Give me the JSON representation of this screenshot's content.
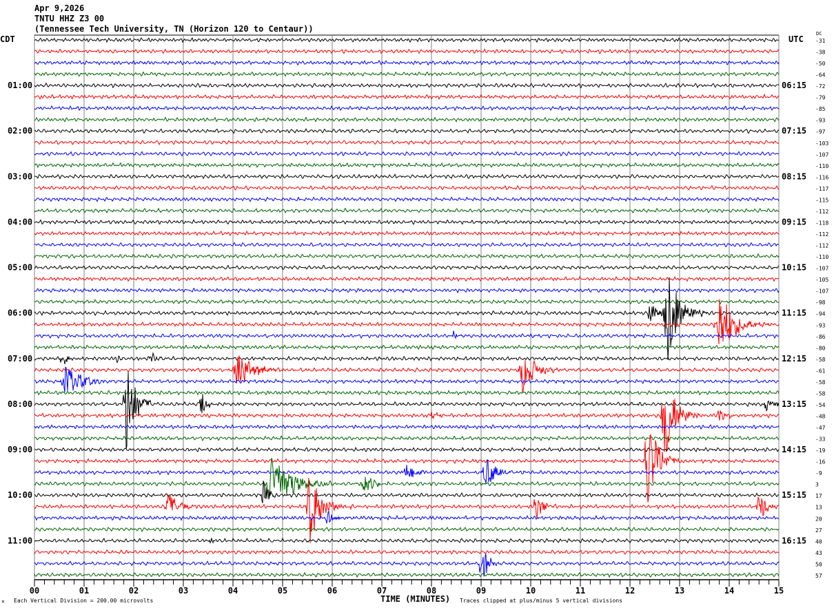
{
  "header": {
    "date": "Apr 9,2026",
    "station": "TNTU HHZ Z3 00",
    "location": "(Tennessee Tech University, TN (Horizon 120 to Centaur))"
  },
  "left_timezone": "CDT",
  "right_timezone": "UTC",
  "dc_label": "DC",
  "footer": {
    "scale_note": "Each Vertical Division =  200.00 microvolts",
    "xlabel": "TIME (MINUTES)",
    "clip_note": "Traces clipped at plus/minus 5 vertical divisions",
    "corner_mark": "✕"
  },
  "colors": {
    "trace_cycle": [
      "#000000",
      "#ff0000",
      "#0000ff",
      "#006400"
    ],
    "grid": "#808080"
  },
  "chart_data": {
    "type": "line",
    "title": "TNTU HHZ Z3 00 helicorder",
    "xlabel": "TIME (MINUTES)",
    "xlim": [
      0,
      15
    ],
    "x_ticks": [
      "00",
      "01",
      "02",
      "03",
      "04",
      "05",
      "06",
      "07",
      "08",
      "09",
      "10",
      "11",
      "12",
      "13",
      "14",
      "15"
    ],
    "rows_per_hour": 4,
    "row_count": 48,
    "left_hour_labels": [
      "01:00",
      "02:00",
      "03:00",
      "04:00",
      "05:00",
      "06:00",
      "07:00",
      "08:00",
      "09:00",
      "10:00",
      "11:00"
    ],
    "right_hour_labels": [
      "06:15",
      "07:15",
      "08:15",
      "09:15",
      "10:15",
      "11:15",
      "12:15",
      "13:15",
      "14:15",
      "15:15",
      "16:15"
    ],
    "dc_offsets": [
      -31,
      -38,
      -50,
      -64,
      -72,
      -79,
      -85,
      -93,
      -97,
      -103,
      -107,
      -110,
      -116,
      -117,
      -115,
      -112,
      -118,
      -112,
      -112,
      -110,
      -107,
      -105,
      -107,
      -98,
      -94,
      -93,
      -86,
      -80,
      -58,
      -61,
      -58,
      -58,
      -54,
      -48,
      -47,
      -33,
      -19,
      -16,
      -9,
      3,
      17,
      13,
      20,
      27,
      40,
      43,
      50,
      57
    ],
    "events": [
      {
        "row": 24,
        "minute": 12.4,
        "amp": 1.2,
        "dur": 0.3
      },
      {
        "row": 24,
        "minute": 12.75,
        "amp": 5,
        "dur": 0.4
      },
      {
        "row": 25,
        "minute": 13.8,
        "amp": 3.5,
        "dur": 0.5
      },
      {
        "row": 26,
        "minute": 8.45,
        "amp": 0.6,
        "dur": 0.1
      },
      {
        "row": 28,
        "minute": 0.55,
        "amp": 0.9,
        "dur": 0.25
      },
      {
        "row": 28,
        "minute": 1.65,
        "amp": 0.5,
        "dur": 0.15
      },
      {
        "row": 28,
        "minute": 2.35,
        "amp": 1.0,
        "dur": 0.12
      },
      {
        "row": 29,
        "minute": 4.1,
        "amp": 1.8,
        "dur": 0.5
      },
      {
        "row": 29,
        "minute": 9.85,
        "amp": 2.2,
        "dur": 0.4
      },
      {
        "row": 30,
        "minute": 0.65,
        "amp": 1.6,
        "dur": 0.5
      },
      {
        "row": 32,
        "minute": 1.85,
        "amp": 5,
        "dur": 0.3
      },
      {
        "row": 32,
        "minute": 3.35,
        "amp": 1.6,
        "dur": 0.15
      },
      {
        "row": 32,
        "minute": 14.75,
        "amp": 0.8,
        "dur": 0.3
      },
      {
        "row": 33,
        "minute": 8.0,
        "amp": 0.5,
        "dur": 0.2
      },
      {
        "row": 33,
        "minute": 12.7,
        "amp": 5,
        "dur": 0.35
      },
      {
        "row": 33,
        "minute": 13.8,
        "amp": 0.6,
        "dur": 0.3
      },
      {
        "row": 37,
        "minute": 12.35,
        "amp": 5,
        "dur": 0.35
      },
      {
        "row": 38,
        "minute": 7.5,
        "amp": 0.9,
        "dur": 0.35
      },
      {
        "row": 38,
        "minute": 9.1,
        "amp": 1.6,
        "dur": 0.35
      },
      {
        "row": 39,
        "minute": 4.8,
        "amp": 3.5,
        "dur": 0.6
      },
      {
        "row": 39,
        "minute": 6.65,
        "amp": 1.2,
        "dur": 0.3
      },
      {
        "row": 40,
        "minute": 4.6,
        "amp": 1.5,
        "dur": 0.2
      },
      {
        "row": 41,
        "minute": 2.7,
        "amp": 1.3,
        "dur": 0.4
      },
      {
        "row": 41,
        "minute": 5.55,
        "amp": 3.6,
        "dur": 0.4
      },
      {
        "row": 41,
        "minute": 10.1,
        "amp": 1.5,
        "dur": 0.25
      },
      {
        "row": 41,
        "minute": 14.6,
        "amp": 1.6,
        "dur": 0.25
      },
      {
        "row": 42,
        "minute": 5.9,
        "amp": 0.8,
        "dur": 0.25
      },
      {
        "row": 44,
        "minute": 3.5,
        "amp": 0.4,
        "dur": 0.15
      },
      {
        "row": 46,
        "minute": 9.0,
        "amp": 2.0,
        "dur": 0.25
      }
    ]
  }
}
